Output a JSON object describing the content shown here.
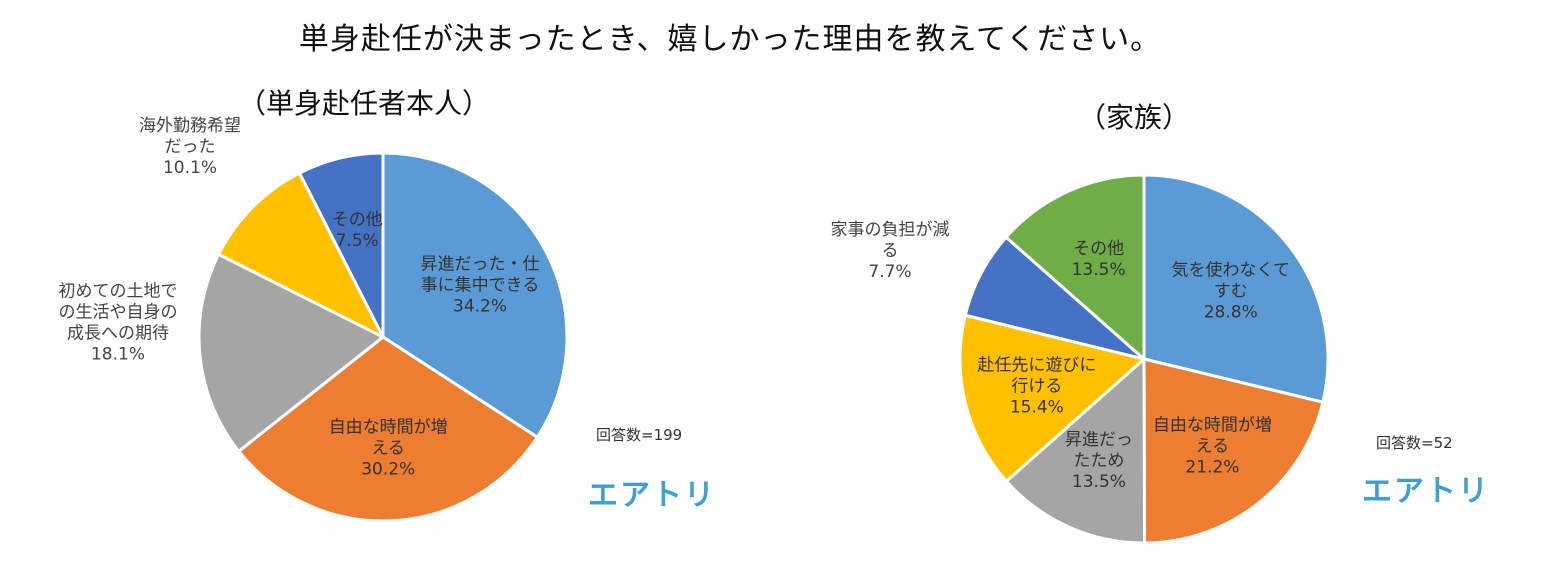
{
  "main_title": "単身赴任が決まったとき、嬉しかった理由を教えてください。",
  "brand": "エアトリ",
  "chart_data": [
    {
      "type": "pie",
      "title": "（単身赴任者本人）",
      "respondents": "回答数=199",
      "slices": [
        {
          "label": "昇進だった・仕事に集中できる",
          "label_lines": [
            "昇進だった・仕",
            "事に集中できる"
          ],
          "value": 34.2,
          "value_text": "34.2%",
          "color": "#5b9bd5",
          "label_inside": true
        },
        {
          "label": "自由な時間が増える",
          "label_lines": [
            "自由な時間が増",
            "える"
          ],
          "value": 30.2,
          "value_text": "30.2%",
          "color": "#ed7d31",
          "label_inside": true
        },
        {
          "label": "初めての土地での生活や自身の成長への期待",
          "label_lines": [
            "初めての土地で",
            "の生活や自身の",
            "成長への期待"
          ],
          "value": 18.1,
          "value_text": "18.1%",
          "color": "#a5a5a5",
          "label_inside": false
        },
        {
          "label": "海外勤務希望だった",
          "label_lines": [
            "海外勤務希望",
            "だった"
          ],
          "value": 10.1,
          "value_text": "10.1%",
          "color": "#ffc000",
          "label_inside": false
        },
        {
          "label": "その他",
          "label_lines": [
            "その他"
          ],
          "value": 7.5,
          "value_text": "7.5%",
          "color": "#4472c4",
          "label_inside": true
        }
      ]
    },
    {
      "type": "pie",
      "title": "（家族）",
      "respondents": "回答数=52",
      "slices": [
        {
          "label": "気を使わなくてすむ",
          "label_lines": [
            "気を使わなくて",
            "すむ"
          ],
          "value": 28.8,
          "value_text": "28.8%",
          "color": "#5b9bd5",
          "label_inside": true
        },
        {
          "label": "自由な時間が増える",
          "label_lines": [
            "自由な時間が増",
            "える"
          ],
          "value": 21.2,
          "value_text": "21.2%",
          "color": "#ed7d31",
          "label_inside": true
        },
        {
          "label": "昇進だったため",
          "label_lines": [
            "昇進だっ",
            "たため"
          ],
          "value": 13.5,
          "value_text": "13.5%",
          "color": "#a5a5a5",
          "label_inside": true
        },
        {
          "label": "赴任先に遊びに行ける",
          "label_lines": [
            "赴任先に遊びに",
            "行ける"
          ],
          "value": 15.4,
          "value_text": "15.4%",
          "color": "#ffc000",
          "label_inside": true
        },
        {
          "label": "家事の負担が減る",
          "label_lines": [
            "家事の負担が減",
            "る"
          ],
          "value": 7.7,
          "value_text": "7.7%",
          "color": "#4472c4",
          "label_inside": false
        },
        {
          "label": "その他",
          "label_lines": [
            "その他"
          ],
          "value": 13.5,
          "value_text": "13.5%",
          "color": "#70ad47",
          "label_inside": true
        }
      ]
    }
  ]
}
